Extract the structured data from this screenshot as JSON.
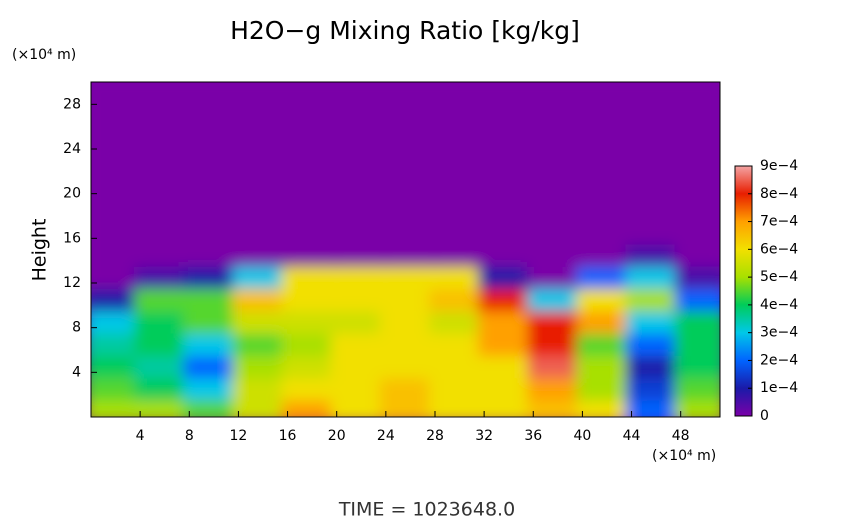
{
  "chart_data": {
    "type": "heatmap",
    "title": "H2O−g Mixing Ratio [kg/kg]",
    "ylabel": "Height",
    "xunit": "(×10⁴ m)",
    "yunit": "(×10⁴ m)",
    "annotation": "TIME = 1023648.0",
    "xlim": [
      0,
      51.2
    ],
    "ylim": [
      0,
      30
    ],
    "xticks": [
      4,
      8,
      12,
      16,
      20,
      24,
      28,
      32,
      36,
      40,
      44,
      48
    ],
    "yticks": [
      4,
      8,
      12,
      16,
      20,
      24,
      28
    ],
    "x": [
      2,
      6,
      10,
      14,
      18,
      22,
      26,
      30,
      34,
      38,
      42,
      46,
      50
    ],
    "y": [
      1,
      3,
      5,
      7,
      9,
      11,
      13,
      15,
      17,
      19,
      21,
      23,
      25,
      27,
      29
    ],
    "z": [
      [
        0.0005,
        0.0005,
        0.00045,
        0.00055,
        0.0007,
        0.0006,
        0.00065,
        0.0006,
        0.0006,
        0.00065,
        0.0006,
        0.0002,
        0.0005
      ],
      [
        0.00045,
        0.0004,
        0.0003,
        0.00055,
        0.0006,
        0.0006,
        0.00065,
        0.0006,
        0.0006,
        0.0007,
        0.0005,
        0.00015,
        0.00045
      ],
      [
        0.0004,
        0.00035,
        0.0002,
        0.0005,
        0.00055,
        0.0006,
        0.0006,
        0.0006,
        0.0006,
        0.00085,
        0.0005,
        0.0001,
        0.0004
      ],
      [
        0.00035,
        0.0004,
        0.0003,
        0.00045,
        0.0005,
        0.0006,
        0.0006,
        0.0006,
        0.0007,
        0.0008,
        0.00045,
        0.0002,
        0.0004
      ],
      [
        0.0003,
        0.0004,
        0.00045,
        0.00055,
        0.00055,
        0.00055,
        0.0006,
        0.00055,
        0.0007,
        0.0008,
        0.0007,
        0.0003,
        0.0004
      ],
      [
        0.0001,
        0.00045,
        0.00045,
        0.00065,
        0.0006,
        0.0006,
        0.0006,
        0.00065,
        0.0008,
        0.0003,
        0.0006,
        0.0005,
        0.0002
      ],
      [
        0,
        5e-05,
        0.0001,
        0.0003,
        0.0006,
        0.0006,
        0.0006,
        0.0006,
        0.0001,
        0,
        0.0002,
        0.0003,
        5e-05
      ],
      [
        0,
        0,
        0,
        0,
        0,
        0,
        0,
        0,
        0,
        0,
        0,
        5e-05,
        0
      ],
      [
        0,
        0,
        0,
        0,
        0,
        0,
        0,
        0,
        0,
        0,
        0,
        0,
        0
      ],
      [
        0,
        0,
        0,
        0,
        0,
        0,
        0,
        0,
        0,
        0,
        0,
        0,
        0
      ],
      [
        0,
        0,
        0,
        0,
        0,
        0,
        0,
        0,
        0,
        0,
        0,
        0,
        0
      ],
      [
        0,
        0,
        0,
        0,
        0,
        0,
        0,
        0,
        0,
        0,
        0,
        0,
        0
      ],
      [
        0,
        0,
        0,
        0,
        0,
        0,
        0,
        0,
        0,
        0,
        0,
        0,
        0
      ],
      [
        0,
        0,
        0,
        0,
        0,
        0,
        0,
        0,
        0,
        0,
        0,
        0,
        0
      ],
      [
        0,
        0,
        0,
        0,
        0,
        0,
        0,
        0,
        0,
        0,
        0,
        0,
        0
      ]
    ],
    "zlim": [
      0,
      0.0009
    ],
    "zticks": [
      0,
      {
        "value": 0.0001,
        "label": "1e−4"
      },
      {
        "value": 0.0002,
        "label": "2e−4"
      },
      {
        "value": 0.0003,
        "label": "3e−4"
      },
      {
        "value": 0.0004,
        "label": "4e−4"
      },
      {
        "value": 0.0005,
        "label": "5e−4"
      },
      {
        "value": 0.0006,
        "label": "6e−4"
      },
      {
        "value": 0.0007,
        "label": "7e−4"
      },
      {
        "value": 0.0008,
        "label": "8e−4"
      },
      {
        "value": 0.0009,
        "label": "9e−4"
      }
    ],
    "colorscale": [
      "#7a00a8",
      "#1a1aa8",
      "#0064ff",
      "#00c8e8",
      "#00cc5a",
      "#a8e000",
      "#f2e000",
      "#ffa000",
      "#e81e00",
      "#f4a4a4"
    ]
  }
}
